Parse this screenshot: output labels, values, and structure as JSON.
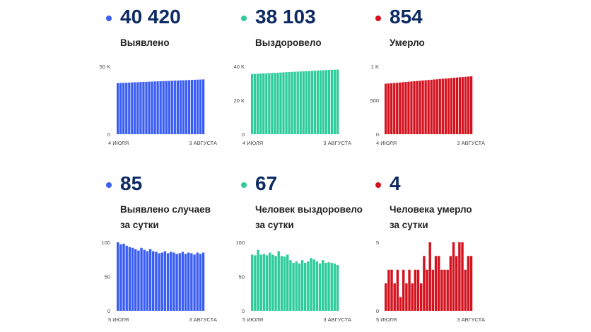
{
  "panels": [
    {
      "key": "p1",
      "color": "#3b5ef2",
      "value": "40 420",
      "label_lines": [
        "Выявлено"
      ]
    },
    {
      "key": "p2",
      "color": "#2ecc9a",
      "value": "38 103",
      "label_lines": [
        "Выздоровело"
      ]
    },
    {
      "key": "p3",
      "color": "#d4121e",
      "value": "854",
      "label_lines": [
        "Умерло"
      ]
    },
    {
      "key": "p4",
      "color": "#3b5ef2",
      "value": "85",
      "label_lines": [
        "Выявлено случаев",
        "за сутки"
      ]
    },
    {
      "key": "p5",
      "color": "#2ecc9a",
      "value": "67",
      "label_lines": [
        "Человек выздоровело",
        "за сутки"
      ]
    },
    {
      "key": "p6",
      "color": "#d4121e",
      "value": "4",
      "label_lines": [
        "Человека умерло",
        "за сутки"
      ]
    }
  ],
  "chart_data": [
    {
      "type": "bar",
      "color": "#3b5ef2",
      "ylim": [
        0,
        50000
      ],
      "yticks": [
        {
          "v": 50000,
          "label": "50 K"
        },
        {
          "v": 0,
          "label": "0"
        }
      ],
      "x_start": "4 ИЮЛЯ",
      "x_end": "3 АВГУСТА",
      "values": [
        37730,
        37820,
        37910,
        38000,
        38090,
        38180,
        38270,
        38360,
        38450,
        38540,
        38630,
        38720,
        38810,
        38900,
        38990,
        39080,
        39170,
        39260,
        39350,
        39440,
        39530,
        39620,
        39710,
        39800,
        39890,
        39980,
        40070,
        40160,
        40250,
        40335,
        40420
      ]
    },
    {
      "type": "bar",
      "color": "#2ecc9a",
      "ylim": [
        0,
        40000
      ],
      "yticks": [
        {
          "v": 40000,
          "label": "40 K"
        },
        {
          "v": 20000,
          "label": "20 K"
        },
        {
          "v": 0,
          "label": "0"
        }
      ],
      "x_start": "4 ИЮЛЯ",
      "x_end": "3 АВГУСТА",
      "values": [
        35500,
        35590,
        35680,
        35770,
        35860,
        35950,
        36040,
        36130,
        36220,
        36310,
        36400,
        36490,
        36580,
        36670,
        36760,
        36850,
        36940,
        37030,
        37120,
        37210,
        37300,
        37390,
        37480,
        37570,
        37660,
        37750,
        37840,
        37930,
        38000,
        38050,
        38103
      ]
    },
    {
      "type": "bar",
      "color": "#d4121e",
      "ylim": [
        0,
        1000
      ],
      "yticks": [
        {
          "v": 1000,
          "label": "1 K"
        },
        {
          "v": 500,
          "label": "500"
        },
        {
          "v": 0,
          "label": "0"
        }
      ],
      "x_start": "4 ИЮЛЯ",
      "x_end": "3 АВГУСТА",
      "values": [
        745,
        749,
        752,
        756,
        759,
        763,
        767,
        770,
        774,
        778,
        781,
        785,
        789,
        792,
        796,
        800,
        803,
        807,
        810,
        814,
        818,
        821,
        825,
        829,
        832,
        836,
        840,
        843,
        847,
        850,
        854
      ]
    },
    {
      "type": "bar",
      "color": "#3b5ef2",
      "ylim": [
        0,
        100
      ],
      "yticks": [
        {
          "v": 100,
          "label": "100"
        },
        {
          "v": 50,
          "label": "50"
        },
        {
          "v": 0,
          "label": "0"
        }
      ],
      "x_start": "5 ИЮЛЯ",
      "x_end": "3 АВГУСТА",
      "values": [
        100,
        97,
        98,
        95,
        93,
        92,
        90,
        88,
        92,
        89,
        87,
        90,
        87,
        86,
        84,
        85,
        87,
        84,
        86,
        85,
        83,
        84,
        86,
        83,
        85,
        84,
        82,
        85,
        83,
        85
      ]
    },
    {
      "type": "bar",
      "color": "#2ecc9a",
      "ylim": [
        0,
        100
      ],
      "yticks": [
        {
          "v": 100,
          "label": "100"
        },
        {
          "v": 50,
          "label": "50"
        },
        {
          "v": 0,
          "label": "0"
        }
      ],
      "x_start": "5 ИЮЛЯ",
      "x_end": "3 АВГУСТА",
      "values": [
        82,
        81,
        89,
        82,
        83,
        81,
        85,
        82,
        80,
        87,
        80,
        79,
        82,
        74,
        70,
        72,
        69,
        74,
        70,
        72,
        77,
        75,
        72,
        69,
        74,
        70,
        71,
        70,
        69,
        67
      ]
    },
    {
      "type": "bar",
      "color": "#d4121e",
      "ylim": [
        0,
        5
      ],
      "yticks": [
        {
          "v": 5,
          "label": "5"
        },
        {
          "v": 0,
          "label": "0"
        }
      ],
      "x_start": "5 ИЮЛЯ",
      "x_end": "3 АВГУСТА",
      "values": [
        2,
        3,
        3,
        2,
        3,
        1,
        3,
        2,
        3,
        2,
        3,
        3,
        2,
        4,
        3,
        5,
        3,
        4,
        4,
        3,
        3,
        3,
        4,
        5,
        4,
        5,
        5,
        3,
        4,
        4
      ]
    }
  ]
}
